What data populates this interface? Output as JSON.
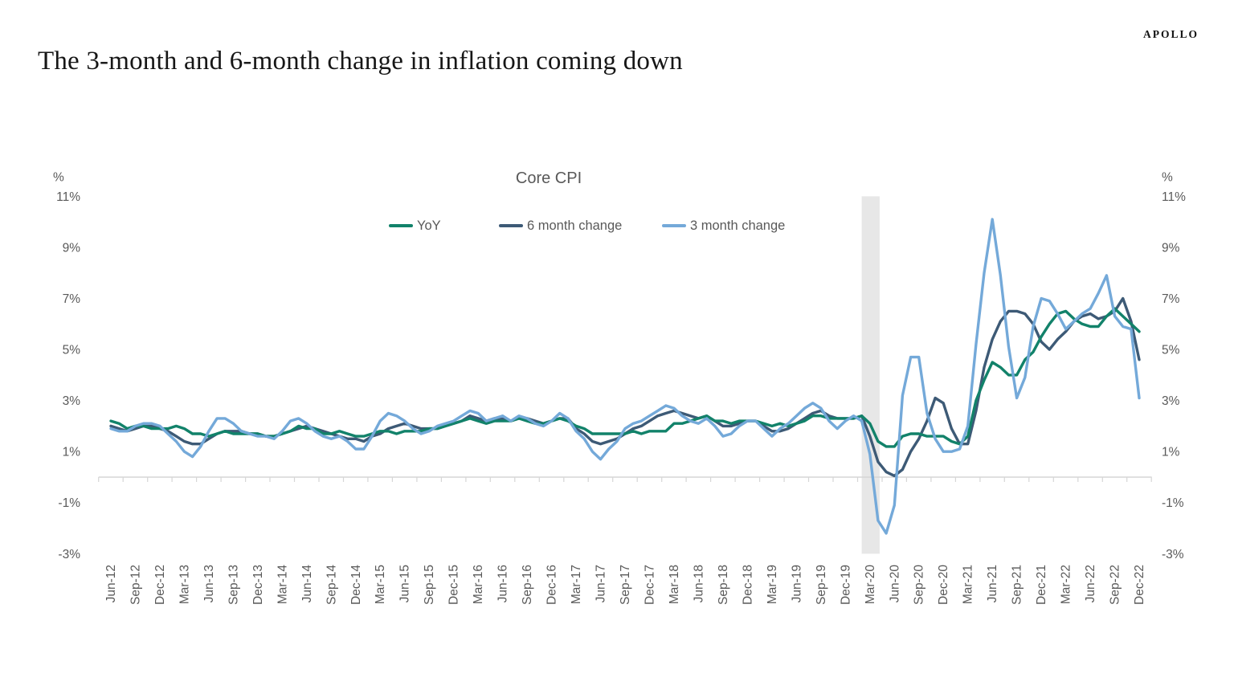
{
  "header": {
    "logo": "APOLLO",
    "title": "The 3-month and 6-month change in inflation coming down"
  },
  "chart_data": {
    "type": "line",
    "title": "Core CPI",
    "legend_position": "top",
    "grid": "off",
    "x_monthly_start": "Jun-12",
    "x_monthly_end": "Dec-22",
    "x_tick_labels": [
      "Jun-12",
      "Sep-12",
      "Dec-12",
      "Mar-13",
      "Jun-13",
      "Sep-13",
      "Dec-13",
      "Mar-14",
      "Jun-14",
      "Sep-14",
      "Dec-14",
      "Mar-15",
      "Jun-15",
      "Sep-15",
      "Dec-15",
      "Mar-16",
      "Jun-16",
      "Sep-16",
      "Dec-16",
      "Mar-17",
      "Jun-17",
      "Sep-17",
      "Dec-17",
      "Mar-18",
      "Jun-18",
      "Sep-18",
      "Dec-18",
      "Mar-19",
      "Jun-19",
      "Sep-19",
      "Dec-19",
      "Mar-20",
      "Jun-20",
      "Sep-20",
      "Dec-20",
      "Mar-21",
      "Jun-21",
      "Sep-21",
      "Dec-21",
      "Mar-22",
      "Jun-22",
      "Sep-22",
      "Dec-22"
    ],
    "y_axis": {
      "unit": "%",
      "min": -3,
      "max": 11,
      "tick_step": 2,
      "tick_values": [
        11,
        9,
        7,
        5,
        3,
        1,
        -1,
        -3
      ],
      "tick_labels": [
        "11%",
        "9%",
        "7%",
        "5%",
        "3%",
        "1%",
        "-1%",
        "-3%"
      ]
    },
    "recession_band": {
      "start": "Feb-20",
      "end": "Apr-20",
      "start_index": 92,
      "end_index": 94.2,
      "color": "#e7e7e7"
    },
    "series": [
      {
        "name": "YoY",
        "color": "#12826a",
        "values": [
          2.2,
          2.1,
          1.9,
          2.0,
          2.0,
          1.9,
          1.9,
          1.9,
          2.0,
          1.9,
          1.7,
          1.7,
          1.6,
          1.7,
          1.8,
          1.7,
          1.7,
          1.7,
          1.7,
          1.6,
          1.6,
          1.7,
          1.8,
          2.0,
          1.9,
          1.9,
          1.7,
          1.7,
          1.8,
          1.7,
          1.6,
          1.6,
          1.7,
          1.8,
          1.8,
          1.7,
          1.8,
          1.8,
          1.8,
          1.9,
          1.9,
          2.0,
          2.1,
          2.2,
          2.3,
          2.2,
          2.1,
          2.2,
          2.2,
          2.2,
          2.3,
          2.2,
          2.1,
          2.1,
          2.2,
          2.3,
          2.2,
          2.0,
          1.9,
          1.7,
          1.7,
          1.7,
          1.7,
          1.7,
          1.8,
          1.7,
          1.8,
          1.8,
          1.8,
          2.1,
          2.1,
          2.2,
          2.3,
          2.4,
          2.2,
          2.2,
          2.1,
          2.2,
          2.2,
          2.2,
          2.1,
          2.0,
          2.1,
          2.0,
          2.1,
          2.2,
          2.4,
          2.4,
          2.3,
          2.3,
          2.3,
          2.3,
          2.4,
          2.1,
          1.4,
          1.2,
          1.2,
          1.6,
          1.7,
          1.7,
          1.6,
          1.6,
          1.6,
          1.4,
          1.3,
          1.6,
          3.0,
          3.8,
          4.5,
          4.3,
          4.0,
          4.0,
          4.6,
          4.9,
          5.5,
          6.0,
          6.4,
          6.5,
          6.2,
          6.0,
          5.9,
          5.9,
          6.3,
          6.6,
          6.3,
          6.0,
          5.7
        ]
      },
      {
        "name": "6 month change",
        "color": "#3d5a76",
        "values": [
          2.0,
          1.9,
          1.8,
          1.9,
          2.0,
          2.0,
          1.9,
          1.8,
          1.6,
          1.4,
          1.3,
          1.3,
          1.5,
          1.7,
          1.8,
          1.8,
          1.8,
          1.7,
          1.7,
          1.6,
          1.6,
          1.7,
          1.8,
          1.9,
          2.0,
          1.9,
          1.8,
          1.7,
          1.6,
          1.5,
          1.5,
          1.4,
          1.6,
          1.7,
          1.9,
          2.0,
          2.1,
          2.0,
          1.9,
          1.9,
          1.9,
          2.0,
          2.1,
          2.2,
          2.4,
          2.3,
          2.2,
          2.3,
          2.3,
          2.2,
          2.3,
          2.3,
          2.2,
          2.1,
          2.2,
          2.3,
          2.3,
          1.9,
          1.7,
          1.4,
          1.3,
          1.4,
          1.5,
          1.7,
          1.9,
          2.0,
          2.2,
          2.4,
          2.5,
          2.6,
          2.5,
          2.4,
          2.3,
          2.4,
          2.2,
          2.0,
          2.0,
          2.1,
          2.2,
          2.2,
          2.0,
          1.8,
          1.8,
          1.9,
          2.1,
          2.3,
          2.5,
          2.6,
          2.4,
          2.3,
          2.3,
          2.3,
          2.4,
          1.6,
          0.6,
          0.2,
          0.05,
          0.3,
          1.0,
          1.5,
          2.2,
          3.1,
          2.9,
          1.9,
          1.3,
          1.3,
          2.6,
          4.3,
          5.4,
          6.1,
          6.5,
          6.5,
          6.4,
          6.0,
          5.3,
          5.0,
          5.4,
          5.7,
          6.1,
          6.3,
          6.4,
          6.2,
          6.3,
          6.5,
          7.0,
          6.1,
          4.6
        ]
      },
      {
        "name": "3 month change",
        "color": "#74a9d9",
        "values": [
          1.9,
          1.8,
          1.8,
          2.0,
          2.1,
          2.1,
          2.0,
          1.7,
          1.4,
          1.0,
          0.8,
          1.2,
          1.8,
          2.3,
          2.3,
          2.1,
          1.8,
          1.7,
          1.6,
          1.6,
          1.5,
          1.8,
          2.2,
          2.3,
          2.1,
          1.8,
          1.6,
          1.5,
          1.6,
          1.4,
          1.1,
          1.1,
          1.6,
          2.2,
          2.5,
          2.4,
          2.2,
          1.9,
          1.7,
          1.8,
          2.0,
          2.1,
          2.2,
          2.4,
          2.6,
          2.5,
          2.2,
          2.3,
          2.4,
          2.2,
          2.4,
          2.3,
          2.1,
          2.0,
          2.2,
          2.5,
          2.3,
          1.8,
          1.5,
          1.0,
          0.7,
          1.1,
          1.4,
          1.9,
          2.1,
          2.2,
          2.4,
          2.6,
          2.8,
          2.7,
          2.4,
          2.2,
          2.1,
          2.3,
          2.0,
          1.6,
          1.7,
          2.0,
          2.2,
          2.2,
          1.9,
          1.6,
          1.9,
          2.1,
          2.4,
          2.7,
          2.9,
          2.7,
          2.2,
          1.9,
          2.2,
          2.4,
          2.2,
          0.9,
          -1.7,
          -2.2,
          -1.1,
          3.2,
          4.7,
          4.7,
          2.5,
          1.5,
          1.0,
          1.0,
          1.1,
          2.0,
          5.2,
          8.0,
          10.1,
          7.9,
          5.1,
          3.1,
          3.9,
          5.9,
          7.0,
          6.9,
          6.4,
          5.8,
          6.1,
          6.4,
          6.6,
          7.2,
          7.9,
          6.3,
          5.9,
          5.8,
          3.1
        ]
      }
    ],
    "axis_color": "#d6d6d6",
    "label_color": "#595959"
  }
}
